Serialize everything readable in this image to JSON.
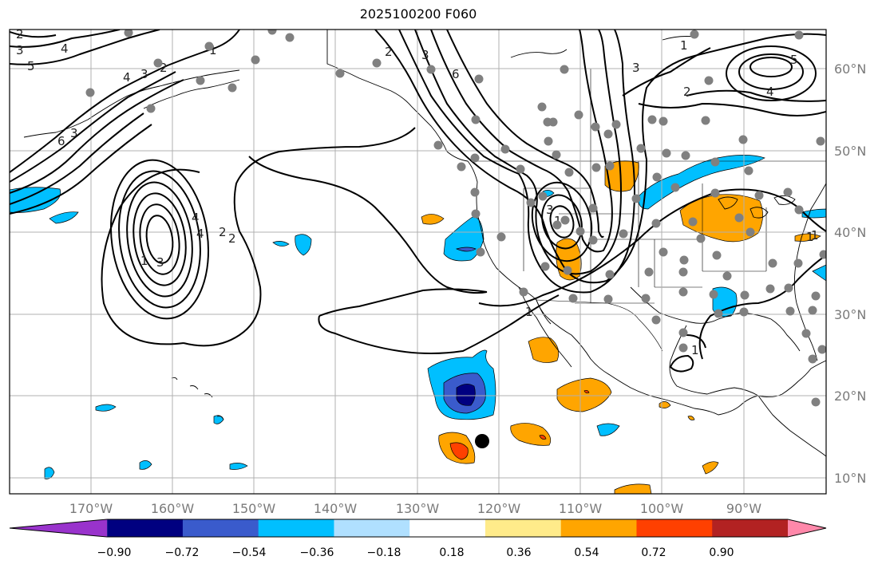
{
  "title": "2025100200 F060",
  "map": {
    "lon_labels": [
      "170°W",
      "160°W",
      "150°W",
      "140°W",
      "130°W",
      "120°W",
      "110°W",
      "100°W",
      "90°W"
    ],
    "lat_labels": [
      "10°N",
      "20°N",
      "30°N",
      "40°N",
      "50°N",
      "60°N"
    ],
    "contour_labels": [
      "2",
      "3",
      "5",
      "4",
      "6",
      "3",
      "4",
      "3",
      "2",
      "1",
      "2",
      "6",
      "3",
      "1",
      "1",
      "3",
      "4",
      "5",
      "2",
      "1",
      "2",
      "4",
      "4",
      "2",
      "1",
      "3",
      "3",
      "1",
      "1",
      "1"
    ],
    "colors": {
      "land_outline": "#000000",
      "grid": "#b0b0b0",
      "station_dot": "#808080",
      "marker": "#000000"
    }
  },
  "colorbar": {
    "ticks": [
      "−0.90",
      "−0.72",
      "−0.54",
      "−0.36",
      "−0.18",
      "0.18",
      "0.36",
      "0.54",
      "0.72",
      "0.90"
    ],
    "colors": [
      "#9933cc",
      "#000080",
      "#3a5bcc",
      "#00bfff",
      "#b0e0ff",
      "#ffffff",
      "#ffeb8a",
      "#ffa500",
      "#ff4000",
      "#b22222",
      "#ff88aa"
    ]
  }
}
